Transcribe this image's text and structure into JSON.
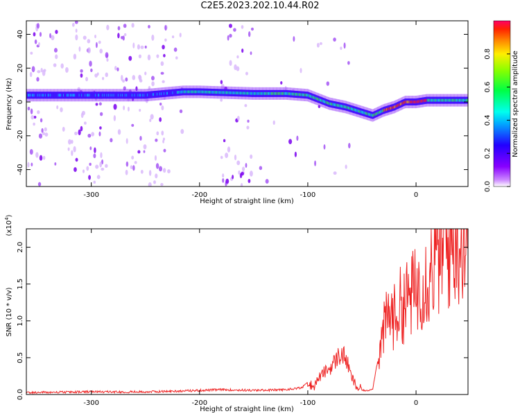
{
  "title": "C2E5.2023.202.10.44.R02",
  "chart_data": [
    {
      "type": "heatmap",
      "xlabel": "Height of straight line (km)",
      "ylabel": "Frequency (Hz)",
      "xlim": [
        -360,
        48
      ],
      "ylim": [
        -50,
        48
      ],
      "xticks": [
        -300,
        -200,
        -100,
        0
      ],
      "yticks": [
        -40,
        -20,
        0,
        20,
        40
      ],
      "colorbar": {
        "label": "Normalized spectral amplitude",
        "range": [
          0.0,
          1.0
        ],
        "ticks": [
          "0.0",
          "0.2",
          "0.4",
          "0.6",
          "0.8"
        ]
      },
      "ridge": {
        "x": [
          -360,
          -300,
          -250,
          -215,
          -200,
          -150,
          -120,
          -100,
          -80,
          -65,
          -55,
          -40,
          -30,
          -20,
          -10,
          0,
          10,
          20,
          30,
          48
        ],
        "freq": [
          4,
          4,
          4,
          6,
          6,
          5,
          5,
          4,
          -1,
          -3,
          -5,
          -8,
          -5,
          -3,
          0,
          0,
          1,
          1,
          1,
          1
        ]
      },
      "grid": false
    },
    {
      "type": "line",
      "xlabel": "Height of straight line (km)",
      "ylabel": "SNR (10 * v/v)",
      "yscale_label": "(x10",
      "yscale_exp": "4",
      "yscale_close": ")",
      "xlim": [
        -360,
        48
      ],
      "ylim": [
        0.0,
        2.25
      ],
      "xticks": [
        -300,
        -200,
        -100,
        0
      ],
      "yticks": [
        "0.0",
        "0.5",
        "1.0",
        "1.5",
        "2.0"
      ],
      "color": "#ee2222",
      "series": [
        {
          "x": [
            -360,
            -300,
            -250,
            -220,
            -200,
            -180,
            -150,
            -120,
            -105,
            -100,
            -95,
            -90,
            -85,
            -80,
            -75,
            -70,
            -65,
            -60,
            -55,
            -50,
            -45,
            -40,
            -35,
            -30,
            -25,
            -20,
            -15,
            -10,
            -5,
            0,
            5,
            10,
            15,
            20,
            25,
            30,
            35,
            40,
            48
          ],
          "y": [
            0.02,
            0.03,
            0.03,
            0.04,
            0.05,
            0.06,
            0.05,
            0.06,
            0.09,
            0.17,
            0.1,
            0.22,
            0.3,
            0.35,
            0.45,
            0.55,
            0.5,
            0.25,
            0.1,
            0.06,
            0.05,
            0.08,
            0.5,
            0.85,
            1.1,
            1.05,
            1.2,
            1.25,
            1.35,
            1.4,
            1.55,
            1.6,
            1.75,
            1.85,
            1.95,
            2.0,
            2.05,
            2.15,
            2.08
          ]
        }
      ],
      "grid": false
    }
  ]
}
